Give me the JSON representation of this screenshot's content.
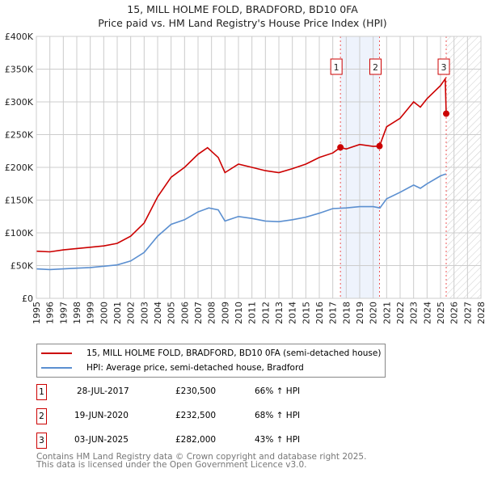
{
  "chart_data": {
    "type": "line",
    "title": "15, MILL HOLME FOLD, BRADFORD, BD10 0FA",
    "subtitle": "Price paid vs. HM Land Registry's House Price Index (HPI)",
    "xlim": [
      1995,
      2028
    ],
    "ylim": [
      0,
      400000
    ],
    "grid": true,
    "x_ticks": [
      "1995",
      "1996",
      "1997",
      "1998",
      "1999",
      "2000",
      "2001",
      "2002",
      "2003",
      "2004",
      "2005",
      "2006",
      "2007",
      "2008",
      "2009",
      "2010",
      "2011",
      "2012",
      "2013",
      "2014",
      "2015",
      "2016",
      "2017",
      "2018",
      "2019",
      "2020",
      "2021",
      "2022",
      "2023",
      "2024",
      "2025",
      "2026",
      "2027",
      "2028"
    ],
    "y_ticks": [
      {
        "v": 0,
        "label": "£0"
      },
      {
        "v": 50000,
        "label": "£50K"
      },
      {
        "v": 100000,
        "label": "£100K"
      },
      {
        "v": 150000,
        "label": "£150K"
      },
      {
        "v": 200000,
        "label": "£200K"
      },
      {
        "v": 250000,
        "label": "£250K"
      },
      {
        "v": 300000,
        "label": "£300K"
      },
      {
        "v": 350000,
        "label": "£350K"
      },
      {
        "v": 400000,
        "label": "£400K"
      }
    ],
    "series": [
      {
        "name": "15, MILL HOLME FOLD, BRADFORD, BD10 0FA (semi-detached house)",
        "color": "#cc0000",
        "x": [
          1995,
          1996,
          1997,
          1998,
          1999,
          2000,
          2001,
          2002,
          2003,
          2004,
          2005,
          2006,
          2007,
          2007.7,
          2008.5,
          2009,
          2010,
          2011,
          2012,
          2013,
          2014,
          2015,
          2016,
          2017,
          2017.57,
          2018,
          2019,
          2020,
          2020.47,
          2021,
          2022,
          2023,
          2023.5,
          2024,
          2025,
          2025.35,
          2025.42
        ],
        "y": [
          72000,
          71000,
          74000,
          76000,
          78000,
          80000,
          84000,
          95000,
          115000,
          155000,
          185000,
          200000,
          220000,
          230000,
          215000,
          192000,
          205000,
          200000,
          195000,
          192000,
          198000,
          205000,
          215000,
          222000,
          230500,
          228000,
          235000,
          232000,
          232500,
          262000,
          275000,
          300000,
          292000,
          305000,
          325000,
          335000,
          282000
        ]
      },
      {
        "name": "HPI: Average price, semi-detached house, Bradford",
        "color": "#5b8fd0",
        "x": [
          1995,
          1996,
          1997,
          1998,
          1999,
          2000,
          2001,
          2002,
          2003,
          2004,
          2005,
          2006,
          2007,
          2007.8,
          2008.5,
          2009,
          2010,
          2011,
          2012,
          2013,
          2014,
          2015,
          2016,
          2017,
          2018,
          2019,
          2020,
          2020.5,
          2021,
          2022,
          2023,
          2023.5,
          2024,
          2025,
          2025.4
        ],
        "y": [
          45000,
          44000,
          45000,
          46000,
          47000,
          49000,
          51000,
          57000,
          70000,
          95000,
          113000,
          120000,
          132000,
          138000,
          135000,
          118000,
          125000,
          122000,
          118000,
          117000,
          120000,
          124000,
          130000,
          137000,
          138000,
          140000,
          140000,
          138000,
          152000,
          162000,
          173000,
          168000,
          175000,
          187000,
          190000
        ]
      }
    ],
    "transactions": [
      {
        "id": "1",
        "x": 2017.57,
        "date": "28-JUL-2017",
        "price": 230500,
        "price_label": "£230,500",
        "hpi": "66% ↑ HPI"
      },
      {
        "id": "2",
        "x": 2020.47,
        "date": "19-JUN-2020",
        "price": 232500,
        "price_label": "£232,500",
        "hpi": "68% ↑ HPI"
      },
      {
        "id": "3",
        "x": 2025.42,
        "date": "03-JUN-2025",
        "price": 282000,
        "price_label": "£282,000",
        "hpi": "43% ↑ HPI"
      }
    ],
    "forecast_start": 2025.42
  },
  "footer": {
    "line1": "Contains HM Land Registry data © Crown copyright and database right 2025.",
    "line2": "This data is licensed under the Open Government Licence v3.0."
  }
}
